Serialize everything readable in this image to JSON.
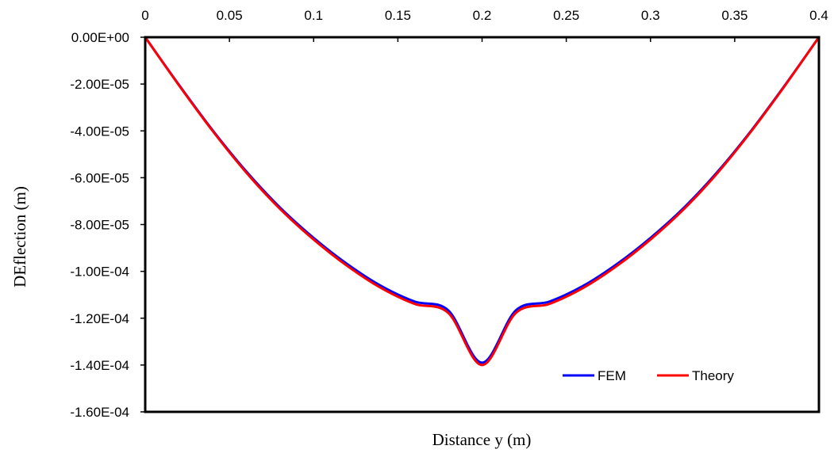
{
  "chart_data": {
    "type": "line",
    "title": "",
    "xlabel": "Distance y (m)",
    "ylabel": "DEflection (m)",
    "xlim": [
      0,
      0.4
    ],
    "ylim": [
      -0.00016,
      0
    ],
    "x_axis_position": "top",
    "x_ticks": [
      0,
      0.05,
      0.1,
      0.15,
      0.2,
      0.25,
      0.3,
      0.35,
      0.4
    ],
    "x_tick_labels": [
      "0",
      "0.05",
      "0.1",
      "0.15",
      "0.2",
      "0.25",
      "0.3",
      "0.35",
      "0.4"
    ],
    "y_ticks": [
      0,
      -2e-05,
      -4e-05,
      -6e-05,
      -8e-05,
      -0.0001,
      -0.00012,
      -0.00014,
      -0.00016
    ],
    "y_tick_labels": [
      "0.00E+00",
      "-2.00E-05",
      "-4.00E-05",
      "-6.00E-05",
      "-8.00E-05",
      "-1.00E-04",
      "-1.20E-04",
      "-1.40E-04",
      "-1.60E-04"
    ],
    "grid": false,
    "legend_position": "bottom-right",
    "x": [
      0,
      0.02,
      0.04,
      0.06,
      0.08,
      0.1,
      0.12,
      0.14,
      0.16,
      0.18,
      0.2,
      0.22,
      0.24,
      0.26,
      0.28,
      0.3,
      0.32,
      0.34,
      0.36,
      0.38,
      0.4
    ],
    "series": [
      {
        "name": "FEM",
        "color": "#0000ff",
        "values": [
          0,
          -2.03e-05,
          -3.97e-05,
          -5.73e-05,
          -7.27e-05,
          -8.57e-05,
          -9.69e-05,
          -0.0001062,
          -0.0001129,
          -0.0001167,
          -0.000139,
          -0.0001167,
          -0.0001129,
          -0.0001062,
          -9.69e-05,
          -8.57e-05,
          -7.27e-05,
          -5.73e-05,
          -3.97e-05,
          -2.03e-05,
          0
        ]
      },
      {
        "name": "Theory",
        "color": "#ff0000",
        "values": [
          0,
          -2.05e-05,
          -4e-05,
          -5.78e-05,
          -7.33e-05,
          -8.64e-05,
          -9.77e-05,
          -0.0001071,
          -0.0001139,
          -0.0001178,
          -0.00014,
          -0.0001178,
          -0.0001139,
          -0.0001071,
          -9.77e-05,
          -8.64e-05,
          -7.33e-05,
          -5.78e-05,
          -4e-05,
          -2.05e-05,
          0
        ]
      }
    ]
  }
}
